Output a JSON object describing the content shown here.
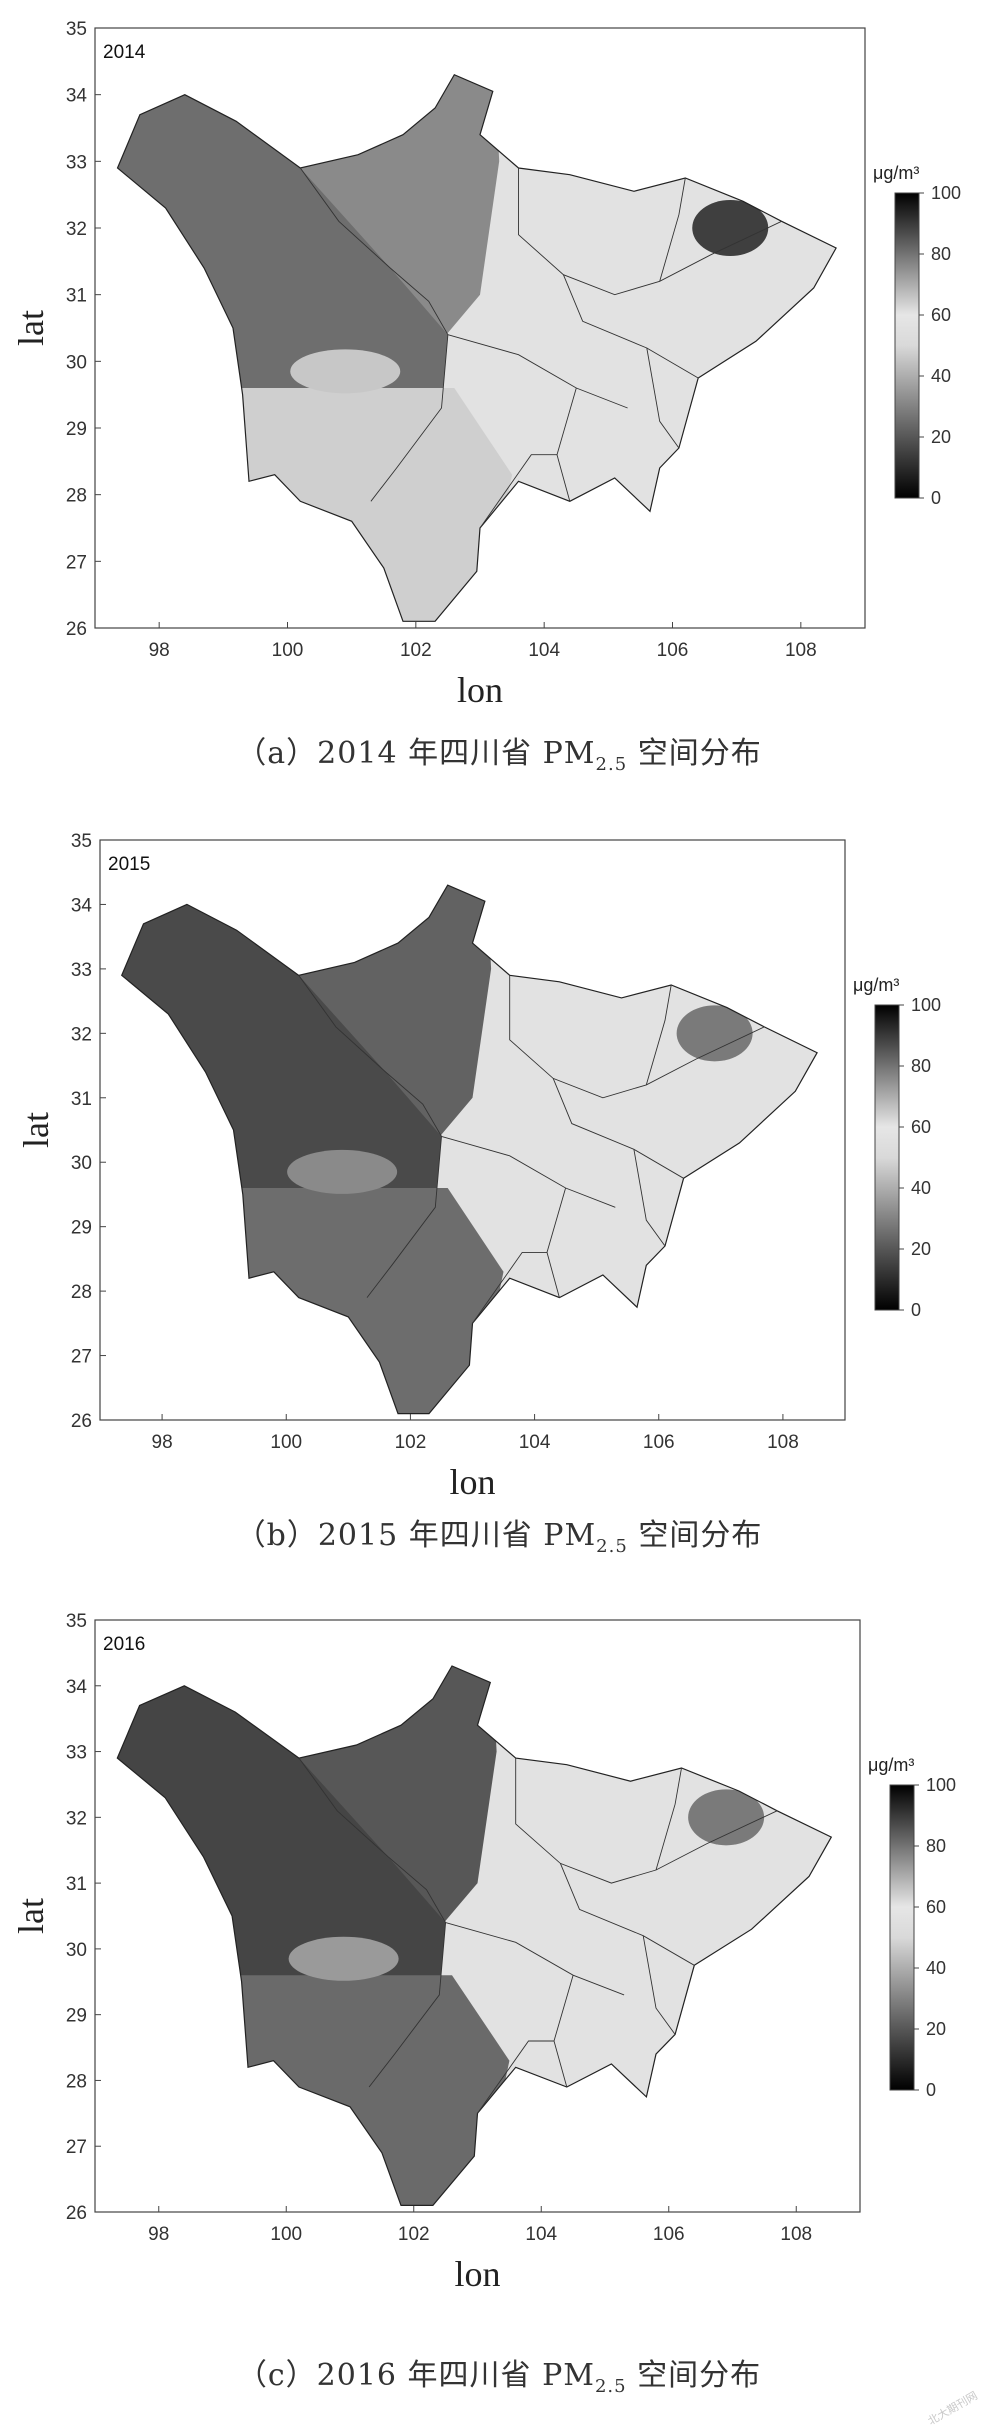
{
  "chart_data": [
    {
      "type": "heatmap",
      "year_label": "2014",
      "xlabel": "lon",
      "ylabel": "lat",
      "xlim": [
        97,
        109
      ],
      "ylim": [
        26,
        35
      ],
      "x_ticks": [
        "98",
        "100",
        "102",
        "104",
        "106",
        "108"
      ],
      "y_ticks": [
        "26",
        "27",
        "28",
        "29",
        "30",
        "31",
        "32",
        "33",
        "34",
        "35"
      ],
      "colorbar": {
        "unit": "μg/m³",
        "ticks": [
          "0",
          "20",
          "40",
          "60",
          "80",
          "100"
        ],
        "range": [
          0,
          100
        ]
      },
      "caption": {
        "prefix": "（a）2014 年四川省 PM",
        "sub": "2.5",
        "suffix": " 空间分布"
      }
    },
    {
      "type": "heatmap",
      "year_label": "2015",
      "xlabel": "lon",
      "ylabel": "lat",
      "xlim": [
        97,
        109
      ],
      "ylim": [
        26,
        35
      ],
      "x_ticks": [
        "98",
        "100",
        "102",
        "104",
        "106",
        "108"
      ],
      "y_ticks": [
        "26",
        "27",
        "28",
        "29",
        "30",
        "31",
        "32",
        "33",
        "34",
        "35"
      ],
      "colorbar": {
        "unit": "μg/m³",
        "ticks": [
          "0",
          "20",
          "40",
          "60",
          "80",
          "100"
        ],
        "range": [
          0,
          100
        ]
      },
      "caption": {
        "prefix": "（b）2015 年四川省 PM",
        "sub": "2.5",
        "suffix": " 空间分布"
      }
    },
    {
      "type": "heatmap",
      "year_label": "2016",
      "xlabel": "lon",
      "ylabel": "lat",
      "xlim": [
        97,
        109
      ],
      "ylim": [
        26,
        35
      ],
      "x_ticks": [
        "98",
        "100",
        "102",
        "104",
        "106",
        "108"
      ],
      "y_ticks": [
        "26",
        "27",
        "28",
        "29",
        "30",
        "31",
        "32",
        "33",
        "34",
        "35"
      ],
      "colorbar": {
        "unit": "μg/m³",
        "ticks": [
          "0",
          "20",
          "40",
          "60",
          "80",
          "100"
        ],
        "range": [
          0,
          100
        ]
      },
      "caption": {
        "prefix": "（c）2016 年四川省 PM",
        "sub": "2.5",
        "suffix": " 空间分布"
      }
    }
  ],
  "colors": {
    "west_dark": [
      "#6e6e6e",
      "#4a4a4a",
      "#454545"
    ],
    "north_mid": [
      "#8a8a8a",
      "#626262",
      "#575757"
    ],
    "south_mid": [
      "#cfcfcf",
      "#6d6d6d",
      "#6a6a6a"
    ],
    "east_light": "#e2e2e2",
    "ne_hotspot": [
      "#3f3f3f",
      "#7a7a7a",
      "#7a7a7a"
    ]
  },
  "watermark": "北大期刊网"
}
